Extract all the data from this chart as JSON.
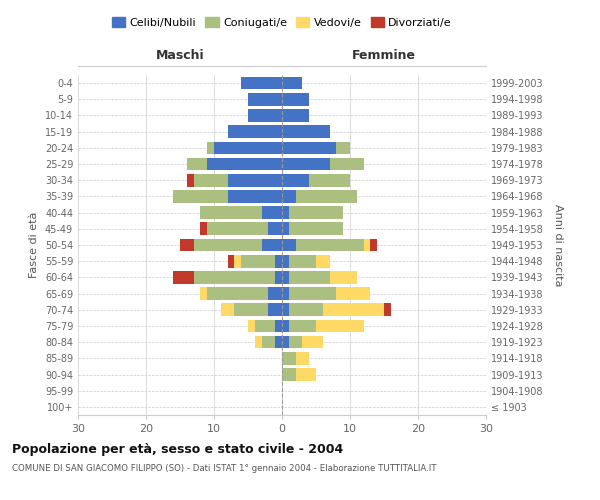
{
  "age_groups": [
    "100+",
    "95-99",
    "90-94",
    "85-89",
    "80-84",
    "75-79",
    "70-74",
    "65-69",
    "60-64",
    "55-59",
    "50-54",
    "45-49",
    "40-44",
    "35-39",
    "30-34",
    "25-29",
    "20-24",
    "15-19",
    "10-14",
    "5-9",
    "0-4"
  ],
  "birth_years": [
    "≤ 1903",
    "1904-1908",
    "1909-1913",
    "1914-1918",
    "1919-1923",
    "1924-1928",
    "1929-1933",
    "1934-1938",
    "1939-1943",
    "1944-1948",
    "1949-1953",
    "1954-1958",
    "1959-1963",
    "1964-1968",
    "1969-1973",
    "1974-1978",
    "1979-1983",
    "1984-1988",
    "1989-1993",
    "1994-1998",
    "1999-2003"
  ],
  "males": {
    "celibi": [
      0,
      0,
      0,
      0,
      1,
      1,
      2,
      2,
      1,
      1,
      3,
      2,
      3,
      8,
      8,
      11,
      10,
      8,
      5,
      5,
      6
    ],
    "coniugati": [
      0,
      0,
      0,
      0,
      2,
      3,
      5,
      9,
      12,
      5,
      10,
      9,
      9,
      8,
      5,
      3,
      1,
      0,
      0,
      0,
      0
    ],
    "vedovi": [
      0,
      0,
      0,
      0,
      1,
      1,
      2,
      1,
      0,
      1,
      0,
      0,
      0,
      0,
      0,
      0,
      0,
      0,
      0,
      0,
      0
    ],
    "divorziati": [
      0,
      0,
      0,
      0,
      0,
      0,
      0,
      0,
      3,
      1,
      2,
      1,
      0,
      0,
      1,
      0,
      0,
      0,
      0,
      0,
      0
    ]
  },
  "females": {
    "nubili": [
      0,
      0,
      0,
      0,
      1,
      1,
      1,
      1,
      1,
      1,
      2,
      1,
      1,
      2,
      4,
      7,
      8,
      7,
      4,
      4,
      3
    ],
    "coniugate": [
      0,
      0,
      2,
      2,
      2,
      4,
      5,
      7,
      6,
      4,
      10,
      8,
      8,
      9,
      6,
      5,
      2,
      0,
      0,
      0,
      0
    ],
    "vedove": [
      0,
      0,
      3,
      2,
      3,
      7,
      9,
      5,
      4,
      2,
      1,
      0,
      0,
      0,
      0,
      0,
      0,
      0,
      0,
      0,
      0
    ],
    "divorziate": [
      0,
      0,
      0,
      0,
      0,
      0,
      1,
      0,
      0,
      0,
      1,
      0,
      0,
      0,
      0,
      0,
      0,
      0,
      0,
      0,
      0
    ]
  },
  "colors": {
    "celibi_nubili": "#4472C4",
    "coniugati": "#AABF80",
    "vedovi": "#FFD966",
    "divorziati": "#C0392B"
  },
  "title": "Popolazione per età, sesso e stato civile - 2004",
  "subtitle": "COMUNE DI SAN GIACOMO FILIPPO (SO) - Dati ISTAT 1° gennaio 2004 - Elaborazione TUTTITALIA.IT",
  "xlabel_left": "Maschi",
  "xlabel_right": "Femmine",
  "ylabel_left": "Fasce di età",
  "ylabel_right": "Anni di nascita",
  "xlim": 30,
  "background_color": "#ffffff",
  "grid_color": "#cccccc",
  "legend_labels": [
    "Celibi/Nubili",
    "Coniugati/e",
    "Vedovi/e",
    "Divorziati/e"
  ]
}
